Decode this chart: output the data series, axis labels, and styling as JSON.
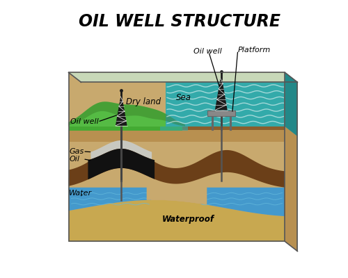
{
  "title": "OIL WELL STRUCTURE",
  "title_fontsize": 17,
  "title_fontstyle": "italic",
  "title_fontweight": "bold",
  "bg_color": "#ffffff",
  "colors": {
    "green_bright": "#55bb44",
    "green_mid": "#44aa33",
    "green_dark": "#337722",
    "sea_teal": "#33aaaa",
    "sea_light": "#55cccc",
    "sea_dark": "#228888",
    "sand_top": "#c8a96e",
    "sand_mid": "#b89050",
    "sand_dark": "#a07840",
    "soil_med": "#8b5e2c",
    "soil_dark": "#6b3f18",
    "soil_darker": "#4a2a10",
    "gas_gray": "#aaaaaa",
    "gas_light": "#c8c8c0",
    "oil_black": "#111111",
    "water_blue": "#4499cc",
    "water_light": "#66bbdd",
    "waterproof_tan": "#c8a850",
    "platform_gray": "#888888",
    "platform_dark": "#666666",
    "derrick_black": "#222222"
  },
  "labels": {
    "oil_well_left": "Oil well",
    "dry_land": "Dry land",
    "sea": "Sea",
    "oil_well_right": "Oil well",
    "platform": "Platform",
    "gas": "Gas",
    "oil": "Oil",
    "water": "Water",
    "waterproof": "Waterproof"
  }
}
